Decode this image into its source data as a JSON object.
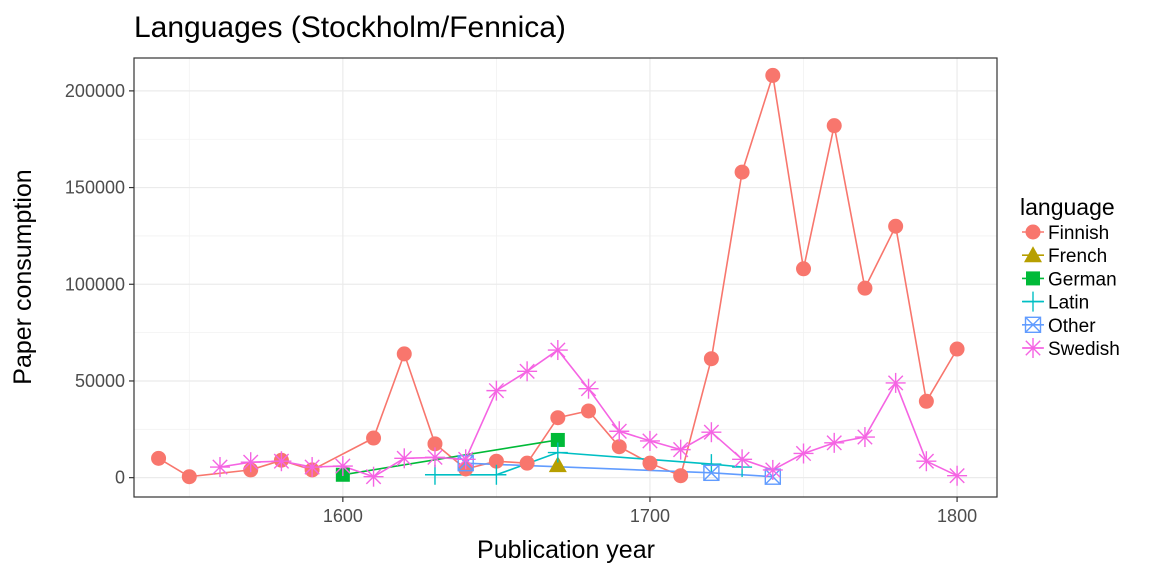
{
  "chart_data": {
    "type": "line",
    "title": "Languages (Stockholm/Fennica)",
    "xlabel": "Publication year",
    "ylabel": "Paper consumption",
    "xlim": [
      1532,
      1813
    ],
    "ylim": [
      -10000,
      217000
    ],
    "x_ticks": [
      1600,
      1700,
      1800
    ],
    "x_tick_labels": [
      "1600",
      "1700",
      "1800"
    ],
    "y_ticks": [
      0,
      50000,
      100000,
      150000,
      200000
    ],
    "y_tick_labels": [
      "0",
      "50000",
      "100000",
      "150000",
      "200000"
    ],
    "grid": true,
    "legend_title": "language",
    "legend_position": "right",
    "series": [
      {
        "name": "Finnish",
        "color": "#F8766D",
        "marker": "circle",
        "points": [
          [
            1540,
            10000
          ],
          [
            1550,
            500
          ],
          [
            1570,
            4000
          ],
          [
            1580,
            9000
          ],
          [
            1590,
            4000
          ],
          [
            1610,
            20500
          ],
          [
            1620,
            64000
          ],
          [
            1630,
            17500
          ],
          [
            1640,
            4500
          ],
          [
            1650,
            8500
          ],
          [
            1660,
            7500
          ],
          [
            1670,
            31000
          ],
          [
            1680,
            34500
          ],
          [
            1690,
            16000
          ],
          [
            1700,
            7500
          ],
          [
            1710,
            1000
          ],
          [
            1720,
            61500
          ],
          [
            1730,
            158000
          ],
          [
            1740,
            208000
          ],
          [
            1750,
            108000
          ],
          [
            1760,
            182000
          ],
          [
            1770,
            98000
          ],
          [
            1780,
            130000
          ],
          [
            1790,
            39500
          ],
          [
            1800,
            66500
          ]
        ]
      },
      {
        "name": "French",
        "color": "#B79F00",
        "marker": "triangle",
        "points": [
          [
            1670,
            6500
          ]
        ]
      },
      {
        "name": "German",
        "color": "#00BA38",
        "marker": "square",
        "points": [
          [
            1600,
            1500
          ],
          [
            1670,
            19500
          ]
        ]
      },
      {
        "name": "Latin",
        "color": "#00BFC4",
        "marker": "plus",
        "points": [
          [
            1630,
            1500
          ],
          [
            1650,
            1500
          ],
          [
            1670,
            13000
          ],
          [
            1720,
            7000
          ],
          [
            1730,
            5500
          ]
        ]
      },
      {
        "name": "Other",
        "color": "#619CFF",
        "marker": "boxx",
        "points": [
          [
            1640,
            7500
          ],
          [
            1720,
            2500
          ],
          [
            1740,
            500
          ]
        ]
      },
      {
        "name": "Swedish",
        "color": "#F564E3",
        "marker": "star",
        "points": [
          [
            1560,
            5500
          ],
          [
            1570,
            8000
          ],
          [
            1580,
            8500
          ],
          [
            1590,
            5500
          ],
          [
            1600,
            6000
          ],
          [
            1610,
            500
          ],
          [
            1620,
            10000
          ],
          [
            1630,
            10500
          ],
          [
            1640,
            9500
          ],
          [
            1650,
            45000
          ],
          [
            1660,
            55000
          ],
          [
            1670,
            66000
          ],
          [
            1680,
            46000
          ],
          [
            1690,
            24000
          ],
          [
            1700,
            19000
          ],
          [
            1710,
            14500
          ],
          [
            1720,
            23500
          ],
          [
            1730,
            9500
          ],
          [
            1740,
            4000
          ],
          [
            1750,
            12500
          ],
          [
            1760,
            18000
          ],
          [
            1770,
            21000
          ],
          [
            1780,
            49000
          ],
          [
            1790,
            8500
          ],
          [
            1800,
            1000
          ]
        ]
      }
    ]
  }
}
